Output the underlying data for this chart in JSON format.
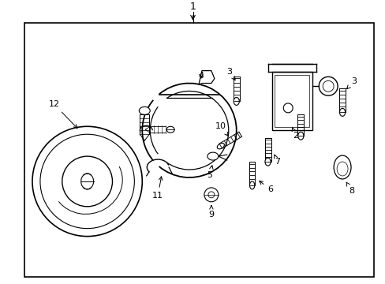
{
  "background_color": "#ffffff",
  "border_color": "#000000",
  "line_color": "#000000",
  "fig_width": 4.89,
  "fig_height": 3.6,
  "dpi": 100,
  "font_size": 8
}
